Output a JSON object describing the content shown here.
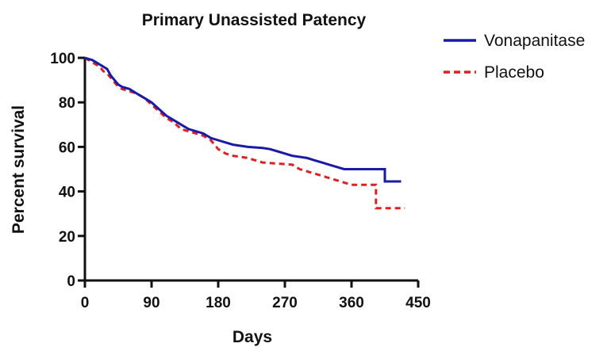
{
  "chart_data": {
    "type": "line",
    "title": "Primary Unassisted Patency",
    "xlabel": "Days",
    "ylabel": "Percent survival",
    "xlim": [
      0,
      450
    ],
    "ylim": [
      0,
      100
    ],
    "x_ticks": [
      0,
      90,
      180,
      270,
      360,
      450
    ],
    "y_ticks": [
      0,
      20,
      40,
      60,
      80,
      100
    ],
    "grid": false,
    "legend_position": "top-right",
    "series": [
      {
        "name": "Vonapanitase",
        "color": "#1a1aa8",
        "style": "solid",
        "points": [
          [
            0,
            100
          ],
          [
            5,
            99.5
          ],
          [
            10,
            99
          ],
          [
            15,
            98
          ],
          [
            20,
            97
          ],
          [
            25,
            96
          ],
          [
            30,
            95
          ],
          [
            35,
            92
          ],
          [
            40,
            90
          ],
          [
            45,
            88
          ],
          [
            50,
            87
          ],
          [
            60,
            86
          ],
          [
            70,
            84
          ],
          [
            80,
            82
          ],
          [
            90,
            80
          ],
          [
            100,
            77
          ],
          [
            110,
            74
          ],
          [
            120,
            72
          ],
          [
            130,
            70
          ],
          [
            140,
            68
          ],
          [
            150,
            67
          ],
          [
            160,
            66
          ],
          [
            170,
            64
          ],
          [
            180,
            63
          ],
          [
            190,
            62
          ],
          [
            200,
            61
          ],
          [
            210,
            60.5
          ],
          [
            220,
            60
          ],
          [
            240,
            59.5
          ],
          [
            250,
            59
          ],
          [
            260,
            58
          ],
          [
            270,
            57
          ],
          [
            280,
            56
          ],
          [
            290,
            55.5
          ],
          [
            300,
            55
          ],
          [
            310,
            54
          ],
          [
            320,
            53
          ],
          [
            330,
            52
          ],
          [
            340,
            51
          ],
          [
            350,
            50
          ],
          [
            360,
            50
          ],
          [
            370,
            50
          ],
          [
            380,
            50
          ],
          [
            405,
            50
          ],
          [
            405,
            44.5
          ],
          [
            427,
            44.5
          ]
        ]
      },
      {
        "name": "Placebo",
        "color": "#e02020",
        "style": "dashed",
        "points": [
          [
            0,
            100
          ],
          [
            5,
            99
          ],
          [
            10,
            98
          ],
          [
            15,
            97
          ],
          [
            20,
            96
          ],
          [
            25,
            94
          ],
          [
            30,
            93
          ],
          [
            35,
            91
          ],
          [
            40,
            89
          ],
          [
            45,
            87
          ],
          [
            50,
            86
          ],
          [
            60,
            85
          ],
          [
            70,
            84
          ],
          [
            80,
            82
          ],
          [
            90,
            79
          ],
          [
            100,
            76
          ],
          [
            110,
            73
          ],
          [
            120,
            71
          ],
          [
            130,
            68
          ],
          [
            140,
            67
          ],
          [
            150,
            66
          ],
          [
            160,
            65
          ],
          [
            170,
            63
          ],
          [
            175,
            61
          ],
          [
            180,
            59
          ],
          [
            190,
            57
          ],
          [
            200,
            56
          ],
          [
            220,
            55
          ],
          [
            230,
            54
          ],
          [
            240,
            53
          ],
          [
            260,
            52.5
          ],
          [
            280,
            52
          ],
          [
            290,
            50
          ],
          [
            300,
            49
          ],
          [
            320,
            47
          ],
          [
            340,
            45
          ],
          [
            350,
            44
          ],
          [
            360,
            43
          ],
          [
            393,
            43
          ],
          [
            393,
            32.5
          ],
          [
            432,
            32.5
          ]
        ]
      }
    ]
  }
}
